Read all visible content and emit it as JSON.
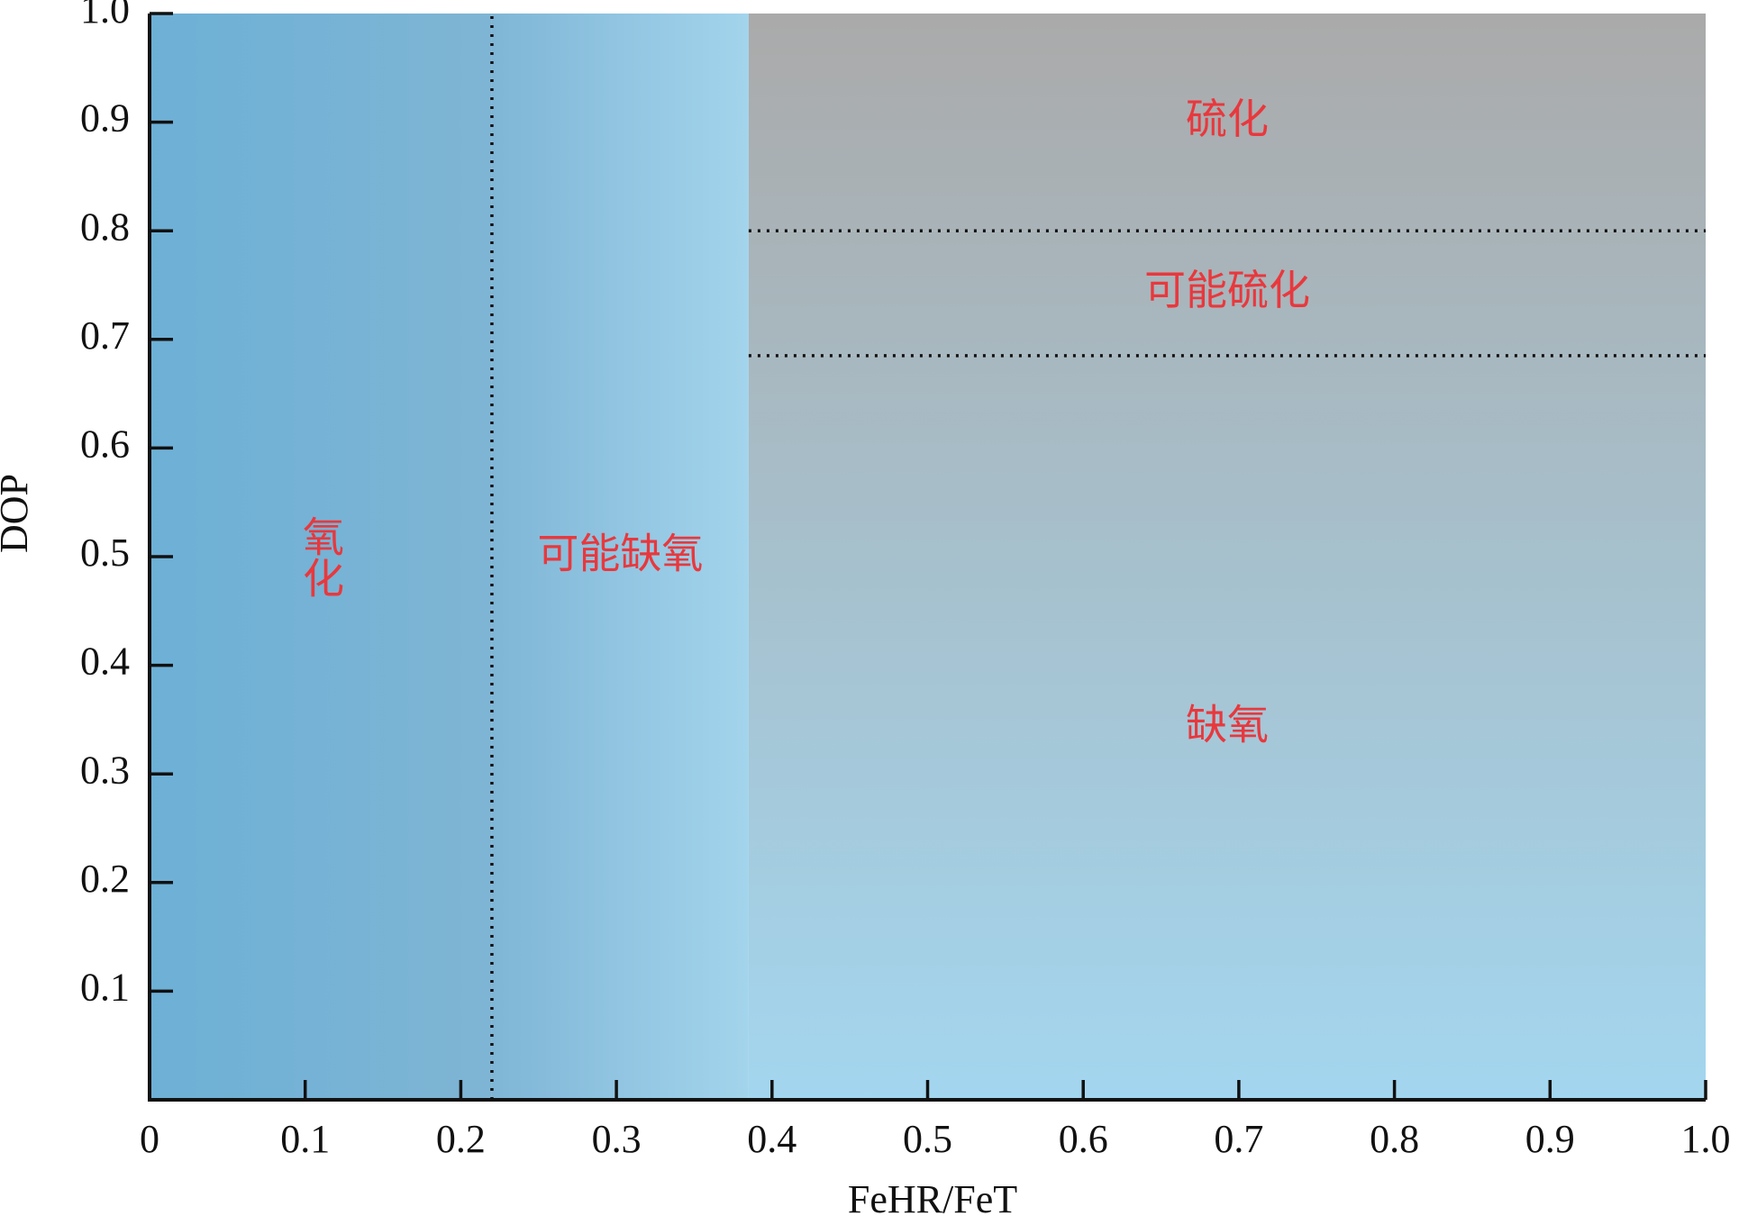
{
  "chart_data": {
    "type": "region",
    "x_label": "FeHR/FeT",
    "y_label": "DOP",
    "xlim": [
      0,
      1
    ],
    "ylim": [
      0,
      1
    ],
    "xticks": [
      0,
      0.1,
      0.2,
      0.3,
      0.4,
      0.5,
      0.6,
      0.7,
      0.8,
      0.9,
      {
        "value": 1,
        "label": "1.0"
      }
    ],
    "yticks": [
      0.1,
      0.2,
      0.3,
      0.4,
      0.5,
      0.6,
      0.7,
      0.8,
      0.9,
      {
        "value": 1,
        "label": "1.0"
      }
    ],
    "regions": [
      {
        "label": "氧化",
        "x": [
          0,
          0.22
        ],
        "y": [
          0,
          1
        ]
      },
      {
        "label": "可能缺氧",
        "x": [
          0.22,
          0.385
        ],
        "y": [
          0,
          1
        ]
      },
      {
        "label": "硫化",
        "x": [
          0.385,
          1
        ],
        "y": [
          0.8,
          1
        ]
      },
      {
        "label": "可能硫化",
        "x": [
          0.385,
          1
        ],
        "y": [
          0.685,
          0.8
        ]
      },
      {
        "label": "缺氧",
        "x": [
          0.385,
          1
        ],
        "y": [
          0,
          0.685
        ]
      }
    ],
    "boundaries": [
      {
        "x": [
          0.22,
          0.22
        ],
        "y": [
          0,
          1
        ]
      },
      {
        "x": [
          0.385,
          1
        ],
        "y": [
          0.8,
          0.8
        ]
      },
      {
        "x": [
          0.385,
          1
        ],
        "y": [
          0.685,
          0.685
        ]
      }
    ]
  }
}
